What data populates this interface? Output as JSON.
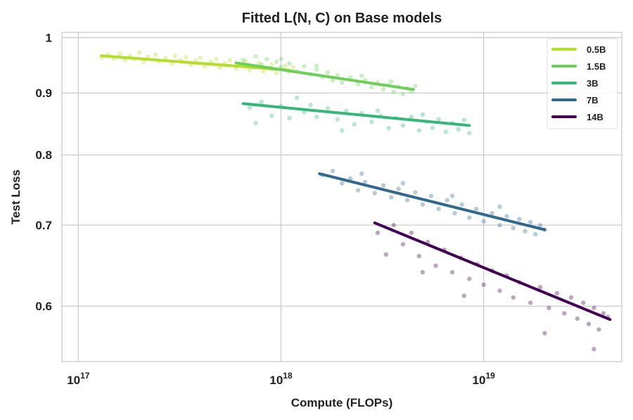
{
  "chart_data": {
    "type": "scatter",
    "title": "Fitted L(N, C) on Base models",
    "xlabel": "Compute (FLOPs)",
    "ylabel": "Test Loss",
    "xscale": "log",
    "yscale": "log",
    "xlim": [
      8.3e+16,
      4.8e+19
    ],
    "ylim": [
      0.54,
      1.01
    ],
    "xticks": [
      {
        "value": 1e+17,
        "base": "10",
        "exp": "17"
      },
      {
        "value": 1e+18,
        "base": "10",
        "exp": "18"
      },
      {
        "value": 1e+19,
        "base": "10",
        "exp": "19"
      }
    ],
    "yticks": [
      {
        "value": 0.6,
        "label": "0.6"
      },
      {
        "value": 0.7,
        "label": "0.7"
      },
      {
        "value": 0.8,
        "label": "0.8"
      },
      {
        "value": 0.9,
        "label": "0.9"
      },
      {
        "value": 1.0,
        "label": "1"
      }
    ],
    "grid": true,
    "legend_position": "top-right",
    "series": [
      {
        "name": "0.5B",
        "color": "#b5de2b",
        "fit": [
          [
            1.3e+17,
            0.966
          ],
          [
            1.1e+18,
            0.94
          ]
        ],
        "points": [
          [
            1.3e+17,
            0.963
          ],
          [
            1.4e+17,
            0.968
          ],
          [
            1.5e+17,
            0.961
          ],
          [
            1.6e+17,
            0.97
          ],
          [
            1.7e+17,
            0.958
          ],
          [
            1.8e+17,
            0.966
          ],
          [
            1.9e+17,
            0.96
          ],
          [
            2e+17,
            0.972
          ],
          [
            2.1e+17,
            0.955
          ],
          [
            2.2e+17,
            0.964
          ],
          [
            2.4e+17,
            0.968
          ],
          [
            2.5e+17,
            0.956
          ],
          [
            2.7e+17,
            0.962
          ],
          [
            2.9e+17,
            0.952
          ],
          [
            3e+17,
            0.966
          ],
          [
            3.2e+17,
            0.958
          ],
          [
            3.4e+17,
            0.963
          ],
          [
            3.6e+17,
            0.95
          ],
          [
            3.8e+17,
            0.957
          ],
          [
            4e+17,
            0.962
          ],
          [
            4.2e+17,
            0.947
          ],
          [
            4.5e+17,
            0.955
          ],
          [
            4.8e+17,
            0.96
          ],
          [
            5e+17,
            0.945
          ],
          [
            5.3e+17,
            0.952
          ],
          [
            5.6e+17,
            0.958
          ],
          [
            6e+17,
            0.943
          ],
          [
            6.3e+17,
            0.95
          ],
          [
            6.7e+17,
            0.956
          ],
          [
            7e+17,
            0.94
          ],
          [
            7.4e+17,
            0.946
          ],
          [
            7.8e+17,
            0.952
          ],
          [
            8.2e+17,
            0.938
          ],
          [
            8.6e+17,
            0.944
          ],
          [
            9e+17,
            0.95
          ],
          [
            9.5e+17,
            0.935
          ],
          [
            1e+18,
            0.942
          ],
          [
            1.05e+18,
            0.948
          ],
          [
            1.1e+18,
            0.937
          ],
          [
            1.15e+18,
            0.945
          ]
        ]
      },
      {
        "name": "1.5B",
        "color": "#6ece58",
        "fit": [
          [
            6e+17,
            0.953
          ],
          [
            4.5e+18,
            0.906
          ]
        ],
        "points": [
          [
            6.5e+17,
            0.958
          ],
          [
            7e+17,
            0.948
          ],
          [
            7.5e+17,
            0.965
          ],
          [
            8e+17,
            0.95
          ],
          [
            8.5e+17,
            0.96
          ],
          [
            9e+17,
            0.942
          ],
          [
            9.5e+17,
            0.955
          ],
          [
            1e+18,
            0.946
          ],
          [
            1.1e+18,
            0.952
          ],
          [
            1.2e+18,
            0.938
          ],
          [
            1.3e+18,
            0.947
          ],
          [
            1.4e+18,
            0.932
          ],
          [
            1.5e+18,
            0.941
          ],
          [
            1.6e+18,
            0.928
          ],
          [
            1.7e+18,
            0.936
          ],
          [
            1.8e+18,
            0.922
          ],
          [
            1.9e+18,
            0.931
          ],
          [
            2e+18,
            0.918
          ],
          [
            2.2e+18,
            0.927
          ],
          [
            2.4e+18,
            0.915
          ],
          [
            2.6e+18,
            0.922
          ],
          [
            2.8e+18,
            0.91
          ],
          [
            3e+18,
            0.918
          ],
          [
            3.2e+18,
            0.906
          ],
          [
            3.4e+18,
            0.914
          ],
          [
            3.6e+18,
            0.902
          ],
          [
            3.8e+18,
            0.911
          ],
          [
            4e+18,
            0.898
          ],
          [
            4.2e+18,
            0.908
          ],
          [
            4.4e+18,
            0.903
          ],
          [
            4.6e+18,
            0.912
          ],
          [
            1e+18,
            0.96
          ],
          [
            1.5e+18,
            0.948
          ],
          [
            2.5e+18,
            0.93
          ],
          [
            3.5e+18,
            0.92
          ]
        ]
      },
      {
        "name": "3B",
        "color": "#35b779",
        "fit": [
          [
            6.5e+17,
            0.882
          ],
          [
            8.5e+18,
            0.846
          ]
        ],
        "points": [
          [
            7e+17,
            0.875
          ],
          [
            7.5e+17,
            0.85
          ],
          [
            8e+17,
            0.885
          ],
          [
            9e+17,
            0.862
          ],
          [
            1e+18,
            0.878
          ],
          [
            1.1e+18,
            0.858
          ],
          [
            1.2e+18,
            0.892
          ],
          [
            1.3e+18,
            0.868
          ],
          [
            1.4e+18,
            0.88
          ],
          [
            1.5e+18,
            0.86
          ],
          [
            1.7e+18,
            0.874
          ],
          [
            1.9e+18,
            0.856
          ],
          [
            2.1e+18,
            0.87
          ],
          [
            2.3e+18,
            0.848
          ],
          [
            2.5e+18,
            0.866
          ],
          [
            2.8e+18,
            0.852
          ],
          [
            3.1e+18,
            0.862
          ],
          [
            3.4e+18,
            0.842
          ],
          [
            3.7e+18,
            0.858
          ],
          [
            4e+18,
            0.846
          ],
          [
            4.4e+18,
            0.86
          ],
          [
            4.8e+18,
            0.838
          ],
          [
            5.2e+18,
            0.852
          ],
          [
            5.6e+18,
            0.842
          ],
          [
            6e+18,
            0.856
          ],
          [
            6.5e+18,
            0.836
          ],
          [
            7e+18,
            0.85
          ],
          [
            7.5e+18,
            0.84
          ],
          [
            8e+18,
            0.855
          ],
          [
            8.5e+18,
            0.834
          ],
          [
            2e+18,
            0.838
          ],
          [
            3e+18,
            0.87
          ],
          [
            5e+18,
            0.864
          ]
        ]
      },
      {
        "name": "7B",
        "color": "#31688e",
        "fit": [
          [
            1.55e+18,
            0.772
          ],
          [
            2e+19,
            0.694
          ]
        ],
        "points": [
          [
            1.6e+18,
            0.77
          ],
          [
            1.8e+18,
            0.776
          ],
          [
            2e+18,
            0.758
          ],
          [
            2.2e+18,
            0.765
          ],
          [
            2.4e+18,
            0.748
          ],
          [
            2.6e+18,
            0.76
          ],
          [
            2.9e+18,
            0.744
          ],
          [
            3.2e+18,
            0.755
          ],
          [
            3.5e+18,
            0.738
          ],
          [
            3.8e+18,
            0.75
          ],
          [
            4.2e+18,
            0.734
          ],
          [
            4.6e+18,
            0.745
          ],
          [
            5e+18,
            0.728
          ],
          [
            5.5e+18,
            0.74
          ],
          [
            6e+18,
            0.722
          ],
          [
            6.6e+18,
            0.734
          ],
          [
            7.2e+18,
            0.716
          ],
          [
            7.8e+18,
            0.728
          ],
          [
            8.5e+18,
            0.71
          ],
          [
            9.2e+18,
            0.722
          ],
          [
            1e+19,
            0.705
          ],
          [
            1.1e+19,
            0.716
          ],
          [
            1.2e+19,
            0.7
          ],
          [
            1.3e+19,
            0.712
          ],
          [
            1.4e+19,
            0.696
          ],
          [
            1.5e+19,
            0.708
          ],
          [
            1.6e+19,
            0.692
          ],
          [
            1.7e+19,
            0.704
          ],
          [
            1.8e+19,
            0.688
          ],
          [
            1.9e+19,
            0.7
          ],
          [
            2e+19,
            0.694
          ],
          [
            2.5e+18,
            0.772
          ],
          [
            4e+18,
            0.758
          ],
          [
            7e+18,
            0.74
          ],
          [
            1.2e+19,
            0.725
          ]
        ]
      },
      {
        "name": "14B",
        "color": "#440154",
        "fit": [
          [
            2.9e+18,
            0.703
          ],
          [
            4.2e+19,
            0.585
          ]
        ],
        "points": [
          [
            3e+18,
            0.69
          ],
          [
            3.3e+18,
            0.662
          ],
          [
            3.6e+18,
            0.7
          ],
          [
            4e+18,
            0.675
          ],
          [
            4.4e+18,
            0.69
          ],
          [
            4.8e+18,
            0.66
          ],
          [
            5.3e+18,
            0.678
          ],
          [
            5.8e+18,
            0.648
          ],
          [
            6.4e+18,
            0.668
          ],
          [
            7e+18,
            0.64
          ],
          [
            7.7e+18,
            0.658
          ],
          [
            8.5e+18,
            0.632
          ],
          [
            9.3e+18,
            0.65
          ],
          [
            1e+19,
            0.625
          ],
          [
            1.1e+19,
            0.642
          ],
          [
            1.2e+19,
            0.618
          ],
          [
            1.3e+19,
            0.636
          ],
          [
            1.4e+19,
            0.61
          ],
          [
            1.5e+19,
            0.628
          ],
          [
            1.7e+19,
            0.604
          ],
          [
            1.9e+19,
            0.622
          ],
          [
            2.1e+19,
            0.598
          ],
          [
            2.3e+19,
            0.615
          ],
          [
            2.5e+19,
            0.592
          ],
          [
            2.7e+19,
            0.61
          ],
          [
            2.9e+19,
            0.586
          ],
          [
            3.1e+19,
            0.604
          ],
          [
            3.3e+19,
            0.58
          ],
          [
            3.5e+19,
            0.598
          ],
          [
            3.7e+19,
            0.574
          ],
          [
            3.9e+19,
            0.592
          ],
          [
            4.1e+19,
            0.588
          ],
          [
            3.5e+19,
            0.553
          ],
          [
            2e+19,
            0.57
          ],
          [
            8e+18,
            0.612
          ],
          [
            5e+18,
            0.64
          ]
        ]
      }
    ]
  }
}
